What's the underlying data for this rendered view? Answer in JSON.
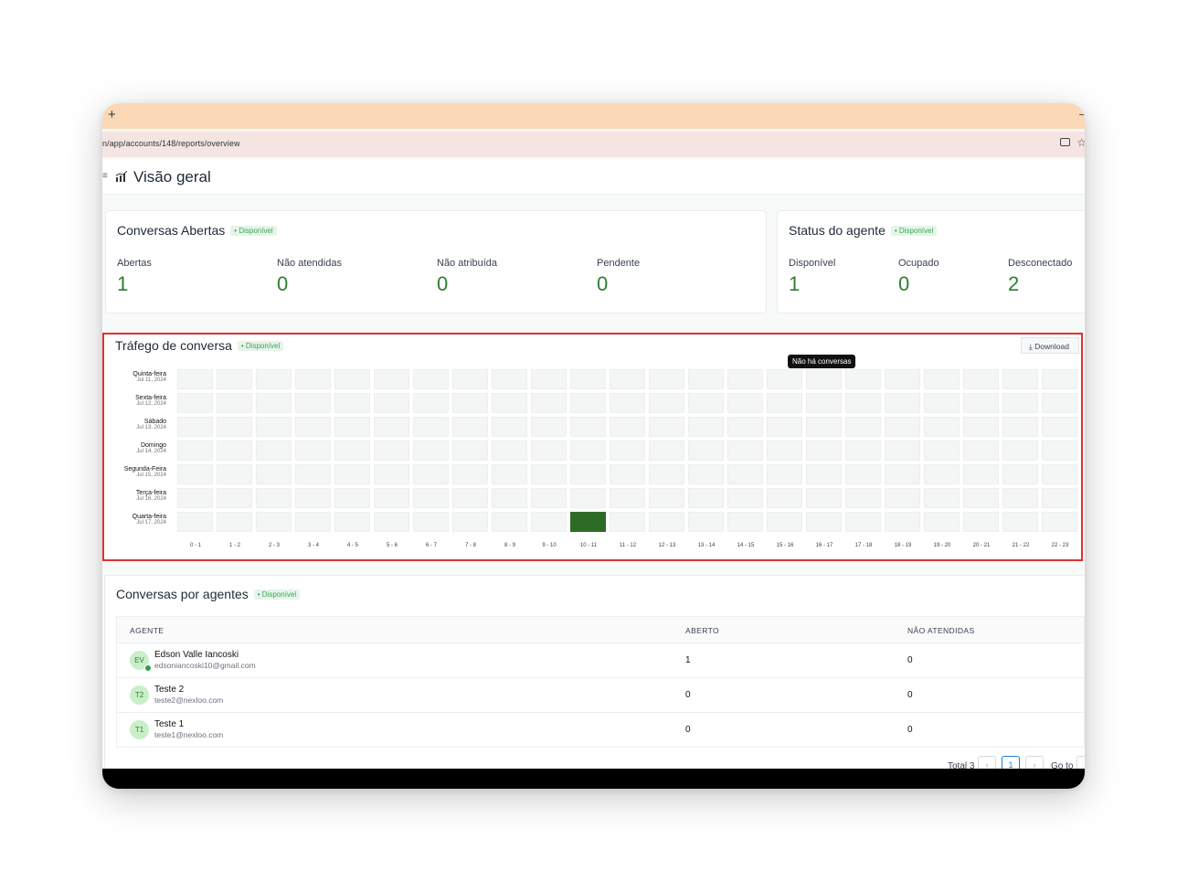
{
  "browser": {
    "tab_plus": "+",
    "url": "n/app/accounts/148/reports/overview"
  },
  "header": {
    "menu_stub": "≡",
    "title": "Visão geral",
    "icon": "bar-chart-icon"
  },
  "open_conversations": {
    "title": "Conversas Abertas",
    "badge": "• Disponível",
    "metrics": [
      {
        "label": "Abertas",
        "value": "1"
      },
      {
        "label": "Não atendidas",
        "value": "0"
      },
      {
        "label": "Não atribuída",
        "value": "0"
      },
      {
        "label": "Pendente",
        "value": "0"
      }
    ]
  },
  "agent_status": {
    "title": "Status do agente",
    "badge": "• Disponível",
    "metrics": [
      {
        "label": "Disponível",
        "value": "1"
      },
      {
        "label": "Ocupado",
        "value": "0"
      },
      {
        "label": "Desconectado",
        "value": "2"
      }
    ]
  },
  "traffic": {
    "title": "Tráfego de conversa",
    "badge": "• Disponível",
    "download_label": "Download",
    "tooltip": "Não há conversas",
    "hot_color": "#2e6b26",
    "cold_color": "#f4f5f5"
  },
  "chart_data": {
    "type": "heatmap",
    "title": "Tráfego de conversa",
    "rows": [
      {
        "day": "Quinta-feira",
        "date": "Jul 11, 2024"
      },
      {
        "day": "Sexta-feira",
        "date": "Jul 12, 2024"
      },
      {
        "day": "Sábado",
        "date": "Jul 13, 2024"
      },
      {
        "day": "Domingo",
        "date": "Jul 14, 2024"
      },
      {
        "day": "Segunda-Feira",
        "date": "Jul 15, 2024"
      },
      {
        "day": "Terça-feira",
        "date": "Jul 16, 2024"
      },
      {
        "day": "Quarta-feira",
        "date": "Jul 17, 2024"
      }
    ],
    "columns": [
      "0 - 1",
      "1 - 2",
      "2 - 3",
      "3 - 4",
      "4 - 5",
      "5 - 6",
      "6 - 7",
      "7 - 8",
      "8 - 9",
      "9 - 10",
      "10 - 11",
      "11 - 12",
      "12 - 13",
      "13 - 14",
      "14 - 15",
      "15 - 16",
      "16 - 17",
      "17 - 18",
      "18 - 19",
      "19 - 20",
      "20 - 21",
      "21 - 22",
      "22 - 23"
    ],
    "values": [
      [
        0,
        0,
        0,
        0,
        0,
        0,
        0,
        0,
        0,
        0,
        0,
        0,
        0,
        0,
        0,
        0,
        0,
        0,
        0,
        0,
        0,
        0,
        0
      ],
      [
        0,
        0,
        0,
        0,
        0,
        0,
        0,
        0,
        0,
        0,
        0,
        0,
        0,
        0,
        0,
        0,
        0,
        0,
        0,
        0,
        0,
        0,
        0
      ],
      [
        0,
        0,
        0,
        0,
        0,
        0,
        0,
        0,
        0,
        0,
        0,
        0,
        0,
        0,
        0,
        0,
        0,
        0,
        0,
        0,
        0,
        0,
        0
      ],
      [
        0,
        0,
        0,
        0,
        0,
        0,
        0,
        0,
        0,
        0,
        0,
        0,
        0,
        0,
        0,
        0,
        0,
        0,
        0,
        0,
        0,
        0,
        0
      ],
      [
        0,
        0,
        0,
        0,
        0,
        0,
        0,
        0,
        0,
        0,
        0,
        0,
        0,
        0,
        0,
        0,
        0,
        0,
        0,
        0,
        0,
        0,
        0
      ],
      [
        0,
        0,
        0,
        0,
        0,
        0,
        0,
        0,
        0,
        0,
        0,
        0,
        0,
        0,
        0,
        0,
        0,
        0,
        0,
        0,
        0,
        0,
        0
      ],
      [
        0,
        0,
        0,
        0,
        0,
        0,
        0,
        0,
        0,
        0,
        1,
        0,
        0,
        0,
        0,
        0,
        0,
        0,
        0,
        0,
        0,
        0,
        0
      ]
    ]
  },
  "agents": {
    "title": "Conversas por agentes",
    "badge": "• Disponível",
    "columns": {
      "agent": "AGENTE",
      "open": "ABERTO",
      "unattended": "NÃO ATENDIDAS"
    },
    "rows": [
      {
        "initials": "EV",
        "name": "Edson Valle Iancoski",
        "email": "edsoniancoski10@gmail.com",
        "open": "1",
        "unattended": "0",
        "online": true
      },
      {
        "initials": "T2",
        "name": "Teste 2",
        "email": "teste2@nexloo.com",
        "open": "0",
        "unattended": "0",
        "online": false
      },
      {
        "initials": "T1",
        "name": "Teste 1",
        "email": "teste1@nexloo.com",
        "open": "0",
        "unattended": "0",
        "online": false
      }
    ],
    "pagination": {
      "total": "Total 3",
      "prev": "‹",
      "page": "1",
      "next": "›",
      "goto": "Go to"
    }
  }
}
